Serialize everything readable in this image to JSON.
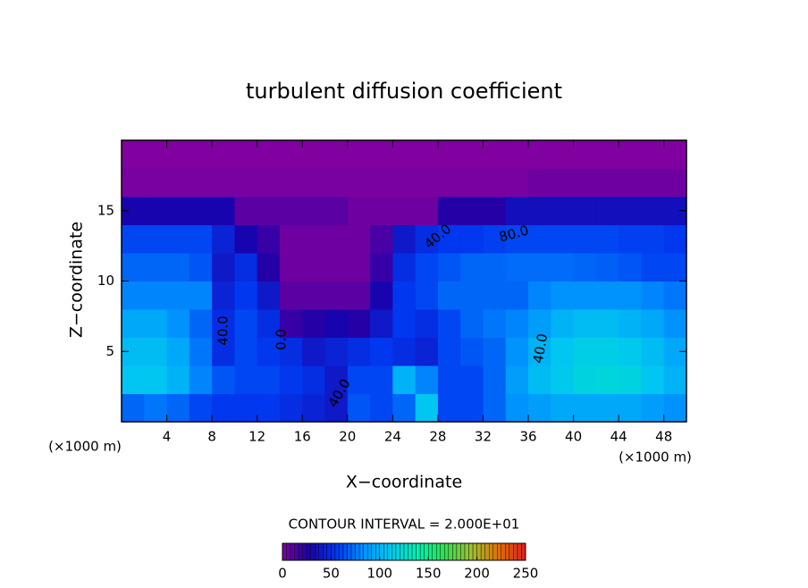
{
  "chart_data": {
    "type": "heatmap",
    "title": "turbulent diffusion coefficient",
    "x_label": "X−coordinate",
    "y_label": "Z−coordinate",
    "x_unit_left": "(×1000 m)",
    "x_unit_right": "(×1000 m)",
    "contour_interval_text": "CONTOUR INTERVAL = 2.000E+01",
    "contour_labels": [
      "40.0",
      "0.0",
      "40.0",
      "40.0",
      "80.0",
      "40.0"
    ],
    "xlim": [
      0,
      50
    ],
    "ylim": [
      0,
      20
    ],
    "xticks": [
      4,
      8,
      12,
      16,
      20,
      24,
      28,
      32,
      36,
      40,
      44,
      48
    ],
    "yticks": [
      5,
      10,
      15
    ],
    "x": [
      1,
      3,
      5,
      7,
      9,
      11,
      13,
      15,
      17,
      19,
      21,
      23,
      25,
      27,
      29,
      31,
      33,
      35,
      37,
      39,
      41,
      43,
      45,
      47,
      49
    ],
    "y": [
      1,
      3,
      5,
      7,
      9,
      11,
      13,
      15,
      17,
      19
    ],
    "z": [
      [
        70,
        75,
        70,
        60,
        55,
        55,
        55,
        50,
        45,
        40,
        65,
        60,
        70,
        110,
        60,
        60,
        70,
        85,
        90,
        95,
        95,
        95,
        95,
        90,
        85
      ],
      [
        110,
        110,
        100,
        80,
        65,
        60,
        60,
        55,
        50,
        40,
        60,
        60,
        100,
        80,
        60,
        60,
        70,
        90,
        105,
        112,
        118,
        120,
        118,
        110,
        100
      ],
      [
        105,
        105,
        95,
        75,
        50,
        60,
        55,
        50,
        40,
        45,
        50,
        55,
        50,
        45,
        60,
        65,
        70,
        85,
        100,
        110,
        115,
        115,
        112,
        105,
        95
      ],
      [
        95,
        95,
        85,
        70,
        50,
        60,
        50,
        20,
        25,
        30,
        25,
        40,
        55,
        50,
        60,
        70,
        75,
        80,
        90,
        100,
        105,
        105,
        100,
        95,
        85
      ],
      [
        80,
        80,
        80,
        80,
        45,
        55,
        40,
        10,
        10,
        10,
        10,
        30,
        55,
        60,
        70,
        70,
        70,
        70,
        80,
        85,
        85,
        85,
        85,
        80,
        75
      ],
      [
        70,
        70,
        70,
        65,
        40,
        50,
        25,
        5,
        5,
        5,
        5,
        20,
        50,
        60,
        65,
        70,
        70,
        72,
        72,
        72,
        70,
        68,
        65,
        60,
        60
      ],
      [
        60,
        60,
        60,
        60,
        45,
        30,
        20,
        5,
        5,
        5,
        5,
        15,
        40,
        50,
        55,
        55,
        58,
        60,
        60,
        60,
        60,
        60,
        58,
        58,
        55
      ],
      [
        30,
        30,
        30,
        30,
        30,
        10,
        10,
        10,
        10,
        10,
        5,
        5,
        5,
        5,
        25,
        25,
        25,
        35,
        35,
        35,
        35,
        35,
        35,
        35,
        35
      ],
      [
        2,
        2,
        2,
        2,
        2,
        2,
        2,
        2,
        2,
        2,
        2,
        2,
        2,
        2,
        2,
        2,
        2,
        2,
        5,
        5,
        5,
        5,
        5,
        5,
        5
      ],
      [
        0,
        0,
        0,
        0,
        0,
        0,
        0,
        0,
        0,
        0,
        0,
        0,
        0,
        0,
        0,
        0,
        0,
        0,
        0,
        0,
        0,
        0,
        0,
        0,
        0
      ]
    ],
    "clim": [
      0,
      250
    ],
    "cticks": [
      0,
      50,
      100,
      150,
      200,
      250
    ],
    "colormap": [
      "#8000a0",
      "#1a00a8",
      "#0038f0",
      "#0090ff",
      "#00c8f0",
      "#00f0b0",
      "#30e050",
      "#a0c030",
      "#e07000",
      "#e02020"
    ]
  }
}
